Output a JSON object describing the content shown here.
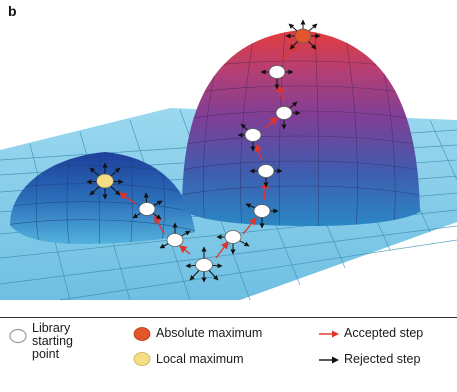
{
  "panel_label": "b",
  "legend": {
    "starting_point": [
      "Library",
      "starting",
      "point"
    ],
    "absolute_maximum": "Absolute maximum",
    "local_maximum": "Local maximum",
    "accepted_step": "Accepted step",
    "rejected_step": "Rejected step"
  },
  "colors": {
    "plane": "#8ccfea",
    "grid": "#2f7fa6",
    "peak_top": "#e23d3f",
    "peak_mid": "#8a3e8e",
    "peak_base": "#1f5fae",
    "absolute_maximum": "#e2562a",
    "local_maximum": "#f3de86",
    "accepted_arrow": "#e0342b",
    "rejected_arrow": "#111111",
    "starting_point": "#ffffff"
  }
}
